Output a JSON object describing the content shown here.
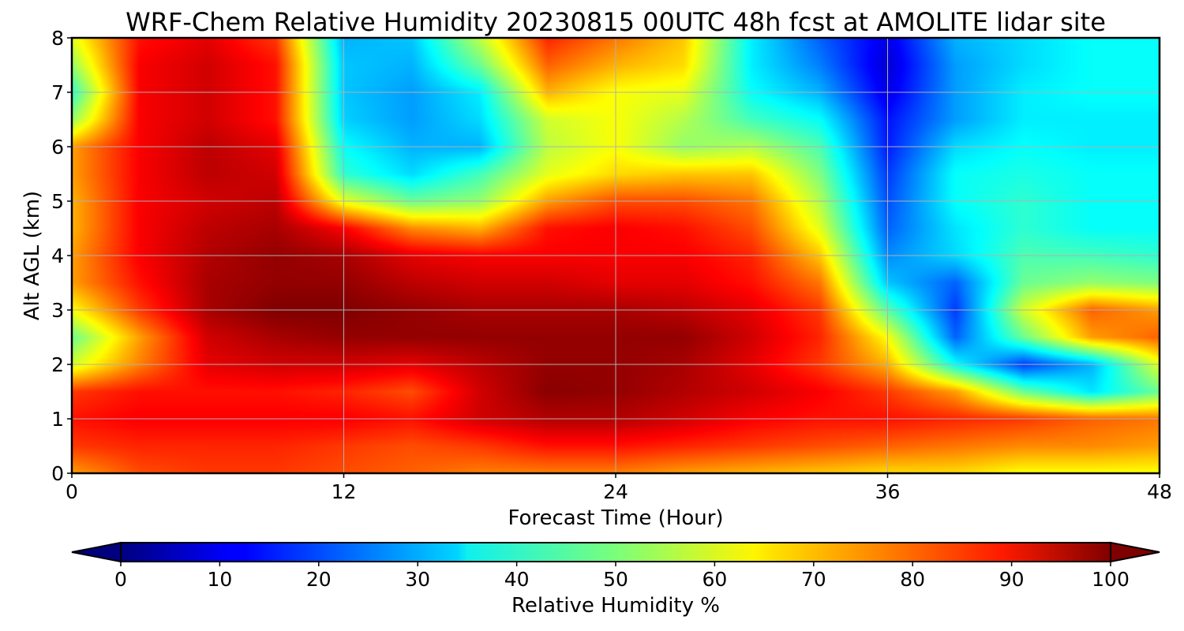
{
  "chart_data": {
    "type": "heatmap",
    "title": "WRF-Chem Relative Humidity 20230815 00UTC 48h fcst at AMOLITE lidar site",
    "xlabel": "Forecast Time (Hour)",
    "ylabel": "Alt AGL (km)",
    "xlim": [
      0,
      48
    ],
    "ylim": [
      0,
      8
    ],
    "x_ticks": [
      "0",
      "12",
      "24",
      "36",
      "48"
    ],
    "y_ticks": [
      "0",
      "1",
      "2",
      "3",
      "4",
      "5",
      "6",
      "7",
      "8"
    ],
    "grid": true,
    "colormap": "jet",
    "colorbar": {
      "label": "Relative Humidity %",
      "range": [
        0,
        100
      ],
      "ticks": [
        "0",
        "10",
        "20",
        "30",
        "40",
        "50",
        "60",
        "70",
        "80",
        "90",
        "100"
      ],
      "extend": "both",
      "orientation": "horizontal",
      "min_color": "#00007f",
      "max_color": "#7f0000"
    },
    "grid_x_hours": [
      0,
      3,
      6,
      9,
      12,
      15,
      18,
      21,
      24,
      27,
      30,
      33,
      36,
      39,
      42,
      45,
      48
    ],
    "grid_y_km": [
      0,
      0.5,
      1,
      1.5,
      2,
      2.5,
      3,
      3.5,
      4,
      4.5,
      5,
      5.5,
      6,
      6.5,
      7,
      7.5,
      8
    ],
    "values": [
      [
        72,
        80,
        82,
        82,
        80,
        78,
        75,
        75,
        75,
        72,
        70,
        68,
        66,
        66,
        62,
        62,
        62
      ],
      [
        82,
        84,
        84,
        84,
        82,
        80,
        82,
        86,
        86,
        84,
        82,
        80,
        78,
        76,
        74,
        74,
        72
      ],
      [
        86,
        88,
        88,
        88,
        88,
        86,
        92,
        95,
        95,
        92,
        88,
        86,
        86,
        84,
        82,
        78,
        76
      ],
      [
        82,
        86,
        86,
        86,
        84,
        80,
        92,
        99,
        98,
        95,
        92,
        88,
        82,
        72,
        48,
        35,
        48
      ],
      [
        58,
        75,
        90,
        92,
        92,
        90,
        94,
        98,
        98,
        96,
        90,
        82,
        70,
        38,
        18,
        30,
        60
      ],
      [
        48,
        72,
        92,
        96,
        98,
        98,
        98,
        98,
        98,
        98,
        92,
        84,
        62,
        22,
        48,
        72,
        78
      ],
      [
        62,
        82,
        96,
        100,
        100,
        98,
        96,
        96,
        96,
        94,
        90,
        82,
        46,
        18,
        58,
        78,
        72
      ],
      [
        72,
        86,
        96,
        98,
        98,
        94,
        92,
        92,
        90,
        90,
        86,
        76,
        32,
        22,
        48,
        52,
        50
      ],
      [
        72,
        88,
        95,
        98,
        96,
        90,
        88,
        88,
        88,
        88,
        84,
        68,
        26,
        34,
        45,
        44,
        42
      ],
      [
        70,
        88,
        94,
        96,
        88,
        74,
        70,
        86,
        88,
        86,
        80,
        60,
        22,
        35,
        42,
        38,
        38
      ],
      [
        70,
        88,
        92,
        94,
        60,
        48,
        52,
        72,
        80,
        80,
        76,
        55,
        20,
        38,
        42,
        38,
        38
      ],
      [
        72,
        88,
        94,
        92,
        42,
        34,
        44,
        60,
        66,
        68,
        68,
        50,
        18,
        38,
        40,
        38,
        38
      ],
      [
        72,
        88,
        94,
        90,
        38,
        30,
        30,
        56,
        62,
        52,
        55,
        45,
        15,
        34,
        38,
        36,
        36
      ],
      [
        52,
        88,
        92,
        86,
        33,
        28,
        34,
        58,
        62,
        55,
        44,
        38,
        14,
        28,
        36,
        36,
        36
      ],
      [
        42,
        88,
        92,
        86,
        32,
        28,
        36,
        70,
        62,
        60,
        38,
        30,
        10,
        28,
        36,
        38,
        38
      ],
      [
        52,
        88,
        92,
        86,
        32,
        30,
        48,
        78,
        70,
        66,
        36,
        25,
        8,
        28,
        34,
        38,
        38
      ],
      [
        60,
        86,
        90,
        82,
        30,
        32,
        56,
        84,
        76,
        68,
        36,
        22,
        10,
        30,
        34,
        38,
        38
      ]
    ]
  }
}
